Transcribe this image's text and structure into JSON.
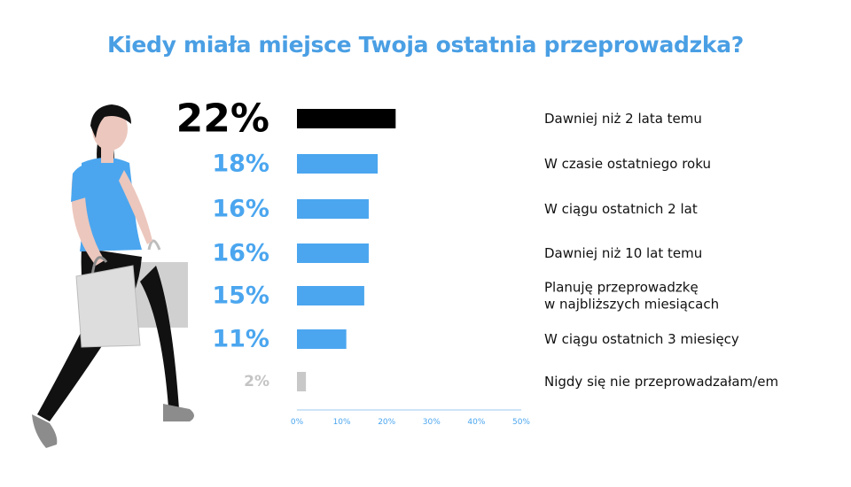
{
  "title": "Kiedy miała miejsce Twoja ostatnia przeprowadzka?",
  "colors": {
    "title": "#4a9fe4",
    "bar_primary": "#000000",
    "bar": "#4ba6ef",
    "bar_muted": "#c8c8c8",
    "pct_primary": "#000000",
    "pct": "#4ba6ef",
    "pct_muted": "#c4c4c4",
    "axis": "#9ccaf0",
    "tick": "#4ba6ef"
  },
  "illustration": {
    "icon": "walking-woman-with-shopping-bags-icon"
  },
  "chart_data": {
    "type": "bar",
    "orientation": "horizontal",
    "title": "Kiedy miała miejsce Twoja ostatnia przeprowadzka?",
    "xlim": [
      0,
      50
    ],
    "xticks": [
      "0%",
      "10%",
      "20%",
      "30%",
      "40%",
      "50%"
    ],
    "grid": false,
    "legend": "none",
    "bars": [
      {
        "value": 22,
        "label": "22%",
        "category": [
          "Dawniej niż 2 lata temu"
        ],
        "style": "primary"
      },
      {
        "value": 18,
        "label": "18%",
        "category": [
          "W czasie ostatniego roku"
        ],
        "style": "normal"
      },
      {
        "value": 16,
        "label": "16%",
        "category": [
          "W ciągu ostatnich 2 lat"
        ],
        "style": "normal"
      },
      {
        "value": 16,
        "label": "16%",
        "category": [
          "Dawniej niż 10 lat temu"
        ],
        "style": "normal"
      },
      {
        "value": 15,
        "label": "15%",
        "category": [
          "Planuję przeprowadzkę",
          "w najbliższych miesiącach"
        ],
        "style": "normal"
      },
      {
        "value": 11,
        "label": "11%",
        "category": [
          "W ciągu ostatnich 3 miesięcy"
        ],
        "style": "normal"
      },
      {
        "value": 2,
        "label": "2%",
        "category": [
          "Nigdy się nie przeprowadzałam/em"
        ],
        "style": "muted"
      }
    ]
  }
}
